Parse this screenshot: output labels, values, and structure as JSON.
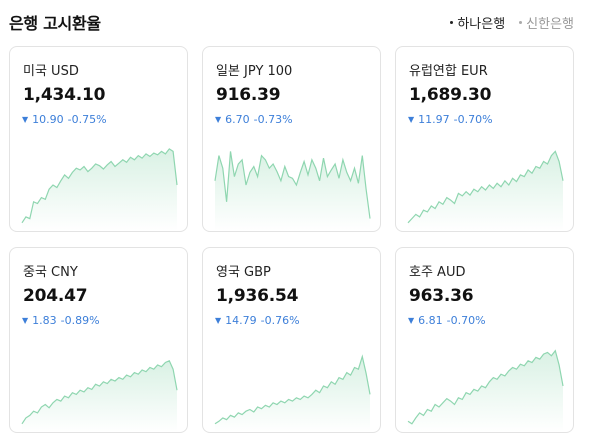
{
  "header": {
    "title": "은행 고시환율",
    "banks": [
      {
        "label": "하나은행",
        "active": true
      },
      {
        "label": "신한은행",
        "active": false
      }
    ]
  },
  "cards": [
    {
      "name": "미국 USD",
      "rate": "1,434.10",
      "change": "10.90",
      "pct": "-0.75%",
      "icon": "down-triangle-icon",
      "trend": [
        0.05,
        0.12,
        0.1,
        0.3,
        0.28,
        0.35,
        0.33,
        0.45,
        0.5,
        0.47,
        0.55,
        0.62,
        0.58,
        0.65,
        0.7,
        0.68,
        0.72,
        0.66,
        0.7,
        0.75,
        0.73,
        0.69,
        0.74,
        0.78,
        0.72,
        0.76,
        0.8,
        0.77,
        0.83,
        0.8,
        0.85,
        0.82,
        0.87,
        0.84,
        0.88,
        0.86,
        0.9,
        0.87,
        0.93,
        0.9,
        0.5
      ]
    },
    {
      "name": "일본 JPY 100",
      "rate": "916.39",
      "change": "6.70",
      "pct": "-0.73%",
      "icon": "down-triangle-icon",
      "trend": [
        0.55,
        0.85,
        0.7,
        0.3,
        0.9,
        0.6,
        0.75,
        0.8,
        0.5,
        0.65,
        0.72,
        0.6,
        0.85,
        0.8,
        0.7,
        0.75,
        0.66,
        0.55,
        0.72,
        0.6,
        0.58,
        0.5,
        0.65,
        0.78,
        0.62,
        0.8,
        0.7,
        0.55,
        0.82,
        0.6,
        0.68,
        0.75,
        0.58,
        0.8,
        0.65,
        0.55,
        0.7,
        0.52,
        0.85,
        0.45,
        0.1
      ]
    },
    {
      "name": "유럽연합 EUR",
      "rate": "1,689.30",
      "change": "11.97",
      "pct": "-0.70%",
      "icon": "down-triangle-icon",
      "trend": [
        0.05,
        0.1,
        0.15,
        0.12,
        0.2,
        0.18,
        0.25,
        0.22,
        0.3,
        0.27,
        0.35,
        0.32,
        0.28,
        0.4,
        0.37,
        0.42,
        0.38,
        0.45,
        0.42,
        0.48,
        0.44,
        0.5,
        0.46,
        0.52,
        0.48,
        0.55,
        0.5,
        0.58,
        0.54,
        0.62,
        0.6,
        0.68,
        0.64,
        0.72,
        0.7,
        0.78,
        0.75,
        0.85,
        0.9,
        0.78,
        0.55
      ]
    },
    {
      "name": "중국 CNY",
      "rate": "204.47",
      "change": "1.83",
      "pct": "-0.89%",
      "icon": "down-triangle-icon",
      "trend": [
        0.05,
        0.12,
        0.15,
        0.2,
        0.18,
        0.25,
        0.28,
        0.24,
        0.3,
        0.34,
        0.32,
        0.38,
        0.36,
        0.42,
        0.4,
        0.45,
        0.43,
        0.48,
        0.46,
        0.52,
        0.5,
        0.55,
        0.53,
        0.58,
        0.56,
        0.6,
        0.58,
        0.63,
        0.61,
        0.66,
        0.64,
        0.69,
        0.67,
        0.72,
        0.7,
        0.75,
        0.73,
        0.78,
        0.8,
        0.7,
        0.45
      ]
    },
    {
      "name": "영국 GBP",
      "rate": "1,936.54",
      "change": "14.79",
      "pct": "-0.76%",
      "icon": "down-triangle-icon",
      "trend": [
        0.05,
        0.08,
        0.12,
        0.1,
        0.15,
        0.13,
        0.18,
        0.16,
        0.2,
        0.22,
        0.19,
        0.25,
        0.23,
        0.27,
        0.25,
        0.3,
        0.28,
        0.32,
        0.3,
        0.34,
        0.32,
        0.36,
        0.34,
        0.38,
        0.36,
        0.4,
        0.45,
        0.42,
        0.5,
        0.48,
        0.55,
        0.52,
        0.6,
        0.58,
        0.66,
        0.63,
        0.72,
        0.7,
        0.85,
        0.65,
        0.4
      ]
    },
    {
      "name": "호주 AUD",
      "rate": "963.36",
      "change": "6.81",
      "pct": "-0.70%",
      "icon": "down-triangle-icon",
      "trend": [
        0.08,
        0.05,
        0.12,
        0.18,
        0.15,
        0.22,
        0.2,
        0.28,
        0.25,
        0.3,
        0.35,
        0.32,
        0.28,
        0.36,
        0.34,
        0.42,
        0.4,
        0.46,
        0.44,
        0.5,
        0.48,
        0.55,
        0.6,
        0.58,
        0.64,
        0.62,
        0.68,
        0.72,
        0.7,
        0.76,
        0.74,
        0.8,
        0.78,
        0.84,
        0.82,
        0.88,
        0.9,
        0.86,
        0.92,
        0.75,
        0.5
      ]
    }
  ],
  "colors": {
    "accent_down": "#3d7fd9",
    "spark_line": "#8fd6b0",
    "spark_fill": "#d9f1e4"
  }
}
